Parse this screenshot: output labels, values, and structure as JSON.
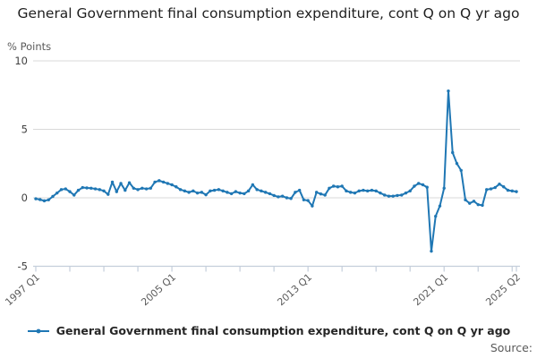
{
  "title": "General Government final consumption expenditure, cont Q on Q yr ago",
  "y_axis_unit_label": "% Points",
  "legend": {
    "label": "General Government final consumption expenditure, cont Q on Q yr ago",
    "marker": "line-with-dot"
  },
  "source_label": "Source:",
  "colors": {
    "line": "#1f77b4",
    "grid": "#d9d9d9",
    "axis": "#c4cedb",
    "title_text": "#1f1f1f",
    "x_tick_text": "#5a5a5a",
    "y_tick_text": "#3f3f3f",
    "muted_text": "#5a5a5a",
    "legend_text": "#262626"
  },
  "chart_data": {
    "type": "line",
    "title": "General Government final consumption expenditure, cont Q on Q yr ago",
    "xlabel": "",
    "ylabel": "% Points",
    "ylim": [
      -5,
      10
    ],
    "y_ticks": [
      -5,
      0,
      5,
      10
    ],
    "grid": "horizontal gridlines on",
    "legend_position": "bottom",
    "marker": "dot",
    "x_period": {
      "start": "1997 Q1",
      "end": "2025 Q2",
      "frequency": "quarterly",
      "points": 114
    },
    "x_tick_every_n_points": 8,
    "x_tick_labels": [
      {
        "index": 0,
        "label": "1997 Q1"
      },
      {
        "index": 32,
        "label": "2005 Q1"
      },
      {
        "index": 64,
        "label": "2013 Q1"
      },
      {
        "index": 96,
        "label": "2021 Q1"
      },
      {
        "index": 113,
        "label": "2025 Q2"
      }
    ],
    "series": [
      {
        "name": "General Government final consumption expenditure, cont Q on Q yr ago",
        "values": [
          -0.07,
          -0.13,
          -0.22,
          -0.15,
          0.1,
          0.35,
          0.6,
          0.65,
          0.45,
          0.2,
          0.55,
          0.75,
          0.72,
          0.7,
          0.65,
          0.6,
          0.5,
          0.25,
          1.15,
          0.45,
          1.05,
          0.55,
          1.1,
          0.7,
          0.6,
          0.7,
          0.65,
          0.7,
          1.15,
          1.25,
          1.15,
          1.05,
          0.95,
          0.8,
          0.6,
          0.5,
          0.4,
          0.5,
          0.35,
          0.4,
          0.22,
          0.5,
          0.55,
          0.6,
          0.5,
          0.4,
          0.3,
          0.45,
          0.35,
          0.3,
          0.5,
          0.95,
          0.6,
          0.5,
          0.4,
          0.3,
          0.17,
          0.07,
          0.12,
          0.0,
          -0.05,
          0.4,
          0.55,
          -0.15,
          -0.2,
          -0.6,
          0.4,
          0.28,
          0.2,
          0.7,
          0.85,
          0.8,
          0.85,
          0.5,
          0.4,
          0.35,
          0.5,
          0.55,
          0.5,
          0.55,
          0.5,
          0.35,
          0.2,
          0.12,
          0.12,
          0.17,
          0.2,
          0.35,
          0.5,
          0.85,
          1.05,
          0.95,
          0.77,
          -3.9,
          -1.35,
          -0.6,
          0.7,
          7.8,
          3.3,
          2.5,
          2.0,
          -0.15,
          -0.4,
          -0.25,
          -0.5,
          -0.55,
          0.6,
          0.65,
          0.75,
          1.0,
          0.8,
          0.55,
          0.5,
          0.45
        ]
      }
    ]
  }
}
